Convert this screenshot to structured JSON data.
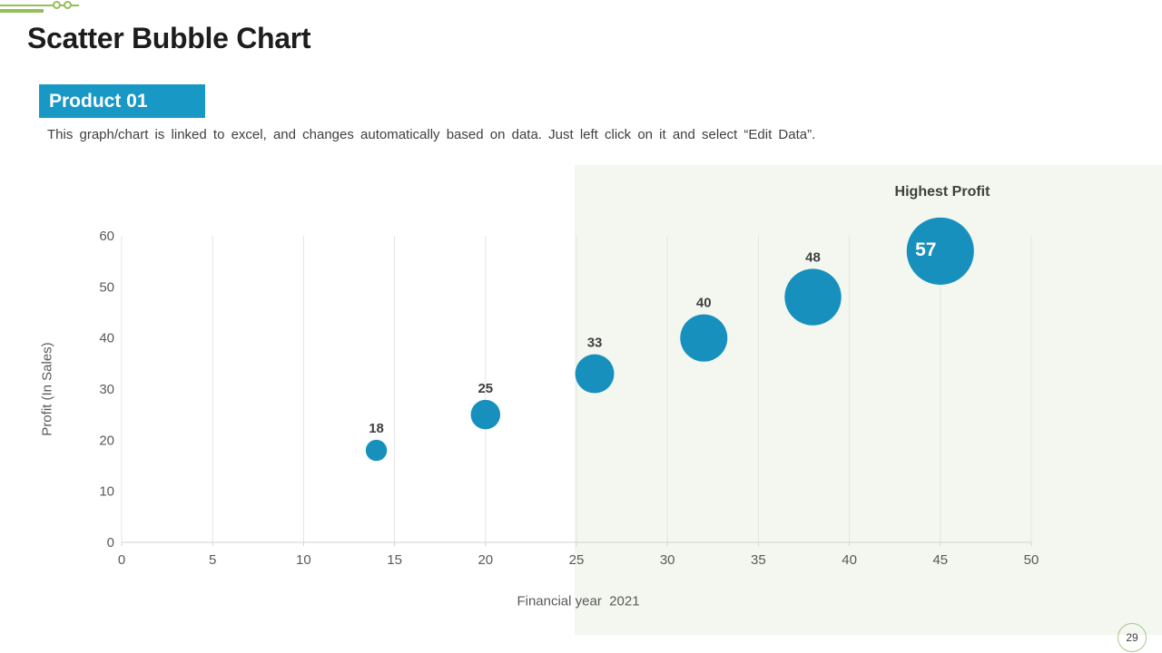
{
  "slide": {
    "title": "Scatter Bubble Chart",
    "badge": "Product 01",
    "subtitle": "This graph/chart is linked to excel, and changes automatically based on data. Just left click on it and select “Edit Data”.",
    "page_number": "29"
  },
  "colors": {
    "bubble": "#1790be",
    "badge_bg": "#1898c4",
    "decoration_green": "#94be5a",
    "highlight_bg": "#f3f7ef",
    "grid": "#e4e4e4",
    "axis_line": "#d2d2d2",
    "axis_text": "#595959",
    "label_text": "#3f3f3f",
    "inside_label_text": "#ffffff",
    "page_circle_border": "#a8c88e"
  },
  "chart_data": {
    "type": "scatter",
    "annotation": "Highest Profit",
    "xlabel": "Financial year  2021",
    "ylabel": "Profit (In Sales)",
    "xlim": [
      0,
      50
    ],
    "ylim": [
      0,
      60
    ],
    "xticks": [
      0,
      5,
      10,
      15,
      20,
      25,
      30,
      35,
      40,
      45,
      50
    ],
    "yticks": [
      0,
      10,
      20,
      30,
      40,
      50,
      60
    ],
    "grid": "vertical-only",
    "legend": "none",
    "points": [
      {
        "x": 14,
        "y": 18,
        "label": "18",
        "label_inside": false
      },
      {
        "x": 20,
        "y": 25,
        "label": "25",
        "label_inside": false
      },
      {
        "x": 26,
        "y": 33,
        "label": "33",
        "label_inside": false
      },
      {
        "x": 32,
        "y": 40,
        "label": "40",
        "label_inside": false
      },
      {
        "x": 38,
        "y": 48,
        "label": "48",
        "label_inside": false
      },
      {
        "x": 45,
        "y": 57,
        "label": "57",
        "label_inside": true
      }
    ],
    "bubble_size_note": "bubble radius proportional to y value"
  }
}
